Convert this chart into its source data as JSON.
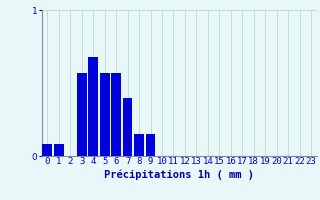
{
  "categories": [
    0,
    1,
    2,
    3,
    4,
    5,
    6,
    7,
    8,
    9,
    10,
    11,
    12,
    13,
    14,
    15,
    16,
    17,
    18,
    19,
    20,
    21,
    22,
    23
  ],
  "values": [
    0.08,
    0.08,
    0.0,
    0.57,
    0.68,
    0.57,
    0.57,
    0.4,
    0.15,
    0.15,
    0.0,
    0.0,
    0.0,
    0.0,
    0.0,
    0.0,
    0.0,
    0.0,
    0.0,
    0.0,
    0.0,
    0.0,
    0.0,
    0.0
  ],
  "bar_color": "#0000dd",
  "background_color": "#e8f8f8",
  "grid_color": "#b8d8d0",
  "axis_color": "#888899",
  "xlabel": "Précipitations 1h ( mm )",
  "ylim": [
    0,
    1.0
  ],
  "yticks": [
    0,
    1
  ],
  "xlim": [
    -0.5,
    23.5
  ],
  "xlabel_fontsize": 7.5,
  "tick_fontsize": 6.5,
  "bar_width": 0.85
}
